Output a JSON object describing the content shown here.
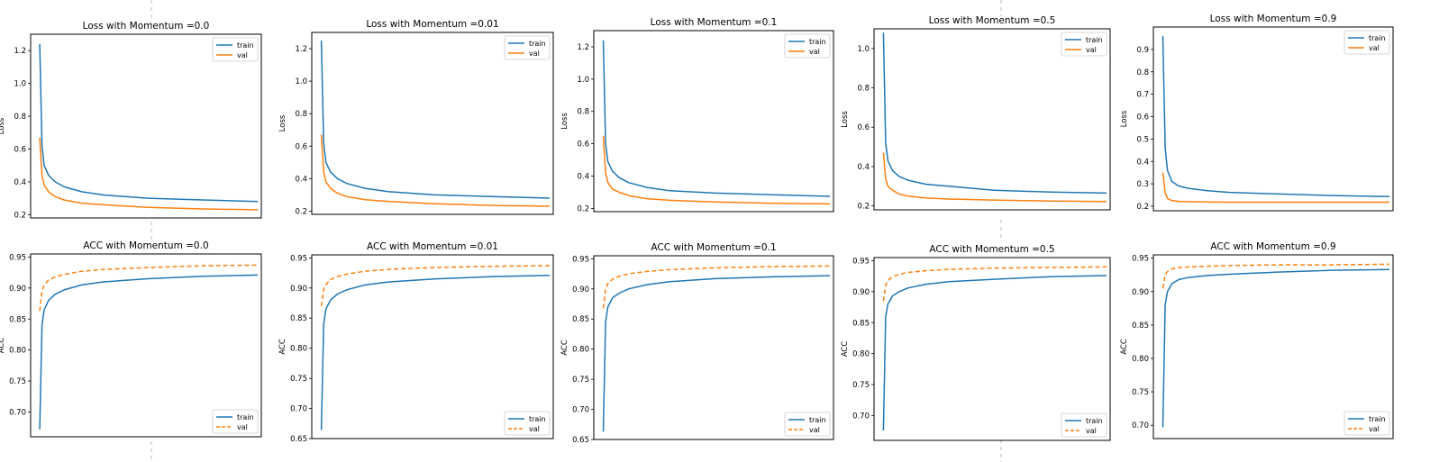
{
  "chart_data": [
    {
      "type": "line",
      "title": "Loss with Momentum =0.0",
      "xlabel": "",
      "ylabel": "Loss",
      "ylim": [
        0.18,
        1.3
      ],
      "yticks": [
        "0.2",
        "0.4",
        "0.6",
        "0.8",
        "1.0",
        "1.2"
      ],
      "x_extent": [
        0,
        100
      ],
      "legend": "top-right",
      "series": [
        {
          "name": "train",
          "color": "#1f77b4",
          "dash": "solid",
          "x": [
            1,
            2,
            3,
            5,
            8,
            12,
            20,
            30,
            50,
            75,
            100
          ],
          "values": [
            1.24,
            0.62,
            0.5,
            0.44,
            0.4,
            0.37,
            0.34,
            0.32,
            0.3,
            0.29,
            0.28
          ]
        },
        {
          "name": "val",
          "color": "#ff7f0e",
          "dash": "solid",
          "x": [
            1,
            2,
            3,
            5,
            8,
            12,
            20,
            30,
            50,
            75,
            100
          ],
          "values": [
            0.67,
            0.44,
            0.38,
            0.34,
            0.31,
            0.29,
            0.27,
            0.26,
            0.245,
            0.235,
            0.23
          ]
        }
      ]
    },
    {
      "type": "line",
      "title": "Loss with Momentum =0.01",
      "xlabel": "",
      "ylabel": "Loss",
      "ylim": [
        0.18,
        1.3
      ],
      "yticks": [
        "0.2",
        "0.4",
        "0.6",
        "0.8",
        "1.0",
        "1.2"
      ],
      "x_extent": [
        0,
        100
      ],
      "legend": "top-right",
      "series": [
        {
          "name": "train",
          "color": "#1f77b4",
          "dash": "solid",
          "x": [
            1,
            2,
            3,
            5,
            8,
            12,
            20,
            30,
            50,
            75,
            100
          ],
          "values": [
            1.25,
            0.62,
            0.5,
            0.44,
            0.4,
            0.37,
            0.34,
            0.32,
            0.3,
            0.29,
            0.28
          ]
        },
        {
          "name": "val",
          "color": "#ff7f0e",
          "dash": "solid",
          "x": [
            1,
            2,
            3,
            5,
            8,
            12,
            20,
            30,
            50,
            75,
            100
          ],
          "values": [
            0.67,
            0.44,
            0.38,
            0.34,
            0.31,
            0.29,
            0.27,
            0.26,
            0.245,
            0.235,
            0.23
          ]
        }
      ]
    },
    {
      "type": "line",
      "title": "Loss with Momentum =0.1",
      "xlabel": "",
      "ylabel": "Loss",
      "ylim": [
        0.18,
        1.3
      ],
      "yticks": [
        "0.2",
        "0.4",
        "0.6",
        "0.8",
        "1.0",
        "1.2"
      ],
      "x_extent": [
        0,
        100
      ],
      "legend": "top-right",
      "series": [
        {
          "name": "train",
          "color": "#1f77b4",
          "dash": "solid",
          "x": [
            1,
            2,
            3,
            5,
            8,
            12,
            20,
            30,
            50,
            75,
            100
          ],
          "values": [
            1.24,
            0.6,
            0.49,
            0.43,
            0.39,
            0.36,
            0.33,
            0.31,
            0.295,
            0.285,
            0.275
          ]
        },
        {
          "name": "val",
          "color": "#ff7f0e",
          "dash": "solid",
          "x": [
            1,
            2,
            3,
            5,
            8,
            12,
            20,
            30,
            50,
            75,
            100
          ],
          "values": [
            0.65,
            0.42,
            0.36,
            0.32,
            0.3,
            0.28,
            0.26,
            0.25,
            0.24,
            0.232,
            0.228
          ]
        }
      ]
    },
    {
      "type": "line",
      "title": "Loss with Momentum =0.5",
      "xlabel": "",
      "ylabel": "Loss",
      "ylim": [
        0.18,
        1.1
      ],
      "yticks": [
        "0.2",
        "0.4",
        "0.6",
        "0.8",
        "1.0"
      ],
      "x_extent": [
        0,
        100
      ],
      "legend": "top-right",
      "series": [
        {
          "name": "train",
          "color": "#1f77b4",
          "dash": "solid",
          "x": [
            1,
            2,
            3,
            5,
            8,
            12,
            20,
            30,
            50,
            75,
            100
          ],
          "values": [
            1.08,
            0.52,
            0.43,
            0.38,
            0.35,
            0.33,
            0.31,
            0.3,
            0.28,
            0.27,
            0.265
          ]
        },
        {
          "name": "val",
          "color": "#ff7f0e",
          "dash": "solid",
          "x": [
            1,
            2,
            3,
            5,
            8,
            12,
            20,
            30,
            50,
            75,
            100
          ],
          "values": [
            0.47,
            0.34,
            0.3,
            0.28,
            0.26,
            0.25,
            0.24,
            0.235,
            0.23,
            0.225,
            0.222
          ]
        }
      ]
    },
    {
      "type": "line",
      "title": "Loss with Momentum =0.9",
      "xlabel": "",
      "ylabel": "Loss",
      "ylim": [
        0.18,
        1.0
      ],
      "yticks": [
        "0.2",
        "0.3",
        "0.4",
        "0.5",
        "0.6",
        "0.7",
        "0.8",
        "0.9"
      ],
      "x_extent": [
        0,
        100
      ],
      "legend": "top-right",
      "series": [
        {
          "name": "train",
          "color": "#1f77b4",
          "dash": "solid",
          "x": [
            1,
            2,
            3,
            5,
            8,
            12,
            20,
            30,
            50,
            75,
            100
          ],
          "values": [
            0.96,
            0.46,
            0.36,
            0.31,
            0.29,
            0.28,
            0.27,
            0.262,
            0.255,
            0.248,
            0.243
          ]
        },
        {
          "name": "val",
          "color": "#ff7f0e",
          "dash": "solid",
          "x": [
            1,
            2,
            3,
            5,
            8,
            12,
            20,
            30,
            50,
            75,
            100
          ],
          "values": [
            0.35,
            0.26,
            0.235,
            0.225,
            0.222,
            0.22,
            0.219,
            0.218,
            0.218,
            0.218,
            0.218
          ]
        }
      ]
    },
    {
      "type": "line",
      "title": "ACC with Momentum =0.0",
      "xlabel": "",
      "ylabel": "ACC",
      "ylim": [
        0.66,
        0.955
      ],
      "yticks": [
        "0.70",
        "0.75",
        "0.80",
        "0.85",
        "0.90",
        "0.95"
      ],
      "x_extent": [
        0,
        100
      ],
      "legend": "bottom-right",
      "series": [
        {
          "name": "train",
          "color": "#1f77b4",
          "dash": "solid",
          "x": [
            1,
            2,
            3,
            5,
            8,
            12,
            20,
            30,
            50,
            75,
            100
          ],
          "values": [
            0.672,
            0.84,
            0.865,
            0.88,
            0.89,
            0.897,
            0.905,
            0.91,
            0.915,
            0.919,
            0.921
          ]
        },
        {
          "name": "val",
          "color": "#ff7f0e",
          "dash": "dashed",
          "x": [
            1,
            2,
            3,
            5,
            8,
            12,
            20,
            30,
            50,
            75,
            100
          ],
          "values": [
            0.863,
            0.895,
            0.905,
            0.913,
            0.918,
            0.922,
            0.927,
            0.93,
            0.933,
            0.936,
            0.937
          ]
        }
      ]
    },
    {
      "type": "line",
      "title": "ACC with Momentum =0.01",
      "xlabel": "",
      "ylabel": "ACC",
      "ylim": [
        0.65,
        0.955
      ],
      "yticks": [
        "0.65",
        "0.70",
        "0.75",
        "0.80",
        "0.85",
        "0.90",
        "0.95"
      ],
      "x_extent": [
        0,
        100
      ],
      "legend": "bottom-right",
      "series": [
        {
          "name": "train",
          "color": "#1f77b4",
          "dash": "solid",
          "x": [
            1,
            2,
            3,
            5,
            8,
            12,
            20,
            30,
            50,
            75,
            100
          ],
          "values": [
            0.664,
            0.84,
            0.865,
            0.88,
            0.89,
            0.897,
            0.905,
            0.91,
            0.915,
            0.919,
            0.921
          ]
        },
        {
          "name": "val",
          "color": "#ff7f0e",
          "dash": "dashed",
          "x": [
            1,
            2,
            3,
            5,
            8,
            12,
            20,
            30,
            50,
            75,
            100
          ],
          "values": [
            0.87,
            0.897,
            0.906,
            0.914,
            0.919,
            0.923,
            0.928,
            0.931,
            0.934,
            0.936,
            0.937
          ]
        }
      ]
    },
    {
      "type": "line",
      "title": "ACC with Momentum =0.1",
      "xlabel": "",
      "ylabel": "ACC",
      "ylim": [
        0.65,
        0.955
      ],
      "yticks": [
        "0.65",
        "0.70",
        "0.75",
        "0.80",
        "0.85",
        "0.90",
        "0.95"
      ],
      "x_extent": [
        0,
        100
      ],
      "legend": "bottom-right",
      "series": [
        {
          "name": "train",
          "color": "#1f77b4",
          "dash": "solid",
          "x": [
            1,
            2,
            3,
            5,
            8,
            12,
            20,
            30,
            50,
            75,
            100
          ],
          "values": [
            0.663,
            0.845,
            0.87,
            0.885,
            0.893,
            0.9,
            0.907,
            0.912,
            0.917,
            0.92,
            0.922
          ]
        },
        {
          "name": "val",
          "color": "#ff7f0e",
          "dash": "dashed",
          "x": [
            1,
            2,
            3,
            5,
            8,
            12,
            20,
            30,
            50,
            75,
            100
          ],
          "values": [
            0.868,
            0.9,
            0.909,
            0.916,
            0.921,
            0.925,
            0.929,
            0.932,
            0.935,
            0.937,
            0.938
          ]
        }
      ]
    },
    {
      "type": "line",
      "title": "ACC with Momentum =0.5",
      "xlabel": "",
      "ylabel": "ACC",
      "ylim": [
        0.66,
        0.955
      ],
      "yticks": [
        "0.70",
        "0.75",
        "0.80",
        "0.85",
        "0.90",
        "0.95"
      ],
      "x_extent": [
        0,
        100
      ],
      "legend": "bottom-right",
      "series": [
        {
          "name": "train",
          "color": "#1f77b4",
          "dash": "solid",
          "x": [
            1,
            2,
            3,
            5,
            8,
            12,
            20,
            30,
            50,
            75,
            100
          ],
          "values": [
            0.676,
            0.86,
            0.88,
            0.893,
            0.9,
            0.906,
            0.912,
            0.916,
            0.92,
            0.924,
            0.926
          ]
        },
        {
          "name": "val",
          "color": "#ff7f0e",
          "dash": "dashed",
          "x": [
            1,
            2,
            3,
            5,
            8,
            12,
            20,
            30,
            50,
            75,
            100
          ],
          "values": [
            0.885,
            0.91,
            0.918,
            0.924,
            0.928,
            0.931,
            0.934,
            0.936,
            0.938,
            0.939,
            0.94
          ]
        }
      ]
    },
    {
      "type": "line",
      "title": "ACC with Momentum =0.9",
      "xlabel": "",
      "ylabel": "ACC",
      "ylim": [
        0.68,
        0.955
      ],
      "yticks": [
        "0.70",
        "0.75",
        "0.80",
        "0.85",
        "0.90",
        "0.95"
      ],
      "x_extent": [
        0,
        100
      ],
      "legend": "bottom-right",
      "series": [
        {
          "name": "train",
          "color": "#1f77b4",
          "dash": "solid",
          "x": [
            1,
            2,
            3,
            5,
            8,
            12,
            20,
            30,
            50,
            75,
            100
          ],
          "values": [
            0.697,
            0.88,
            0.9,
            0.912,
            0.918,
            0.921,
            0.924,
            0.926,
            0.929,
            0.932,
            0.933
          ]
        },
        {
          "name": "val",
          "color": "#ff7f0e",
          "dash": "dashed",
          "x": [
            1,
            2,
            3,
            5,
            8,
            12,
            20,
            30,
            50,
            75,
            100
          ],
          "values": [
            0.905,
            0.925,
            0.93,
            0.934,
            0.936,
            0.937,
            0.938,
            0.939,
            0.94,
            0.94,
            0.941
          ]
        }
      ]
    }
  ]
}
